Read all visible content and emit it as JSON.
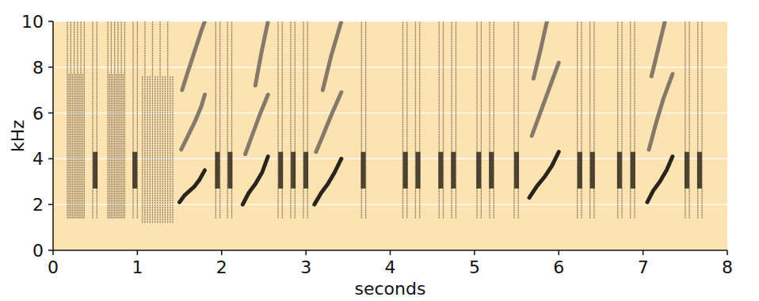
{
  "chart_data": {
    "type": "spectrogram",
    "x_label": "seconds",
    "y_label": "kHz",
    "xlim": [
      0,
      8
    ],
    "ylim": [
      0,
      10
    ],
    "xticks": [
      0,
      1,
      2,
      3,
      4,
      5,
      6,
      7,
      8
    ],
    "yticks": [
      0,
      2,
      4,
      6,
      8,
      10
    ],
    "grid": true,
    "color": "#3a3124",
    "clicks": {
      "x": [
        0.17,
        0.19,
        0.21,
        0.23,
        0.25,
        0.27,
        0.29,
        0.31,
        0.33,
        0.35,
        0.37,
        0.47,
        0.52,
        0.65,
        0.67,
        0.69,
        0.71,
        0.73,
        0.75,
        0.77,
        0.79,
        0.81,
        0.83,
        0.85,
        0.95,
        1.0,
        1.06,
        1.09,
        1.12,
        1.15,
        1.18,
        1.21,
        1.24,
        1.27,
        1.3,
        1.33,
        1.36,
        1.39,
        1.42,
        1.93,
        1.98,
        2.07,
        2.12,
        2.67,
        2.72,
        2.82,
        2.87,
        2.97,
        3.02,
        3.66,
        3.71,
        4.15,
        4.2,
        4.3,
        4.35,
        4.58,
        4.63,
        4.73,
        4.78,
        5.03,
        5.08,
        5.18,
        5.23,
        5.47,
        5.52,
        6.22,
        6.27,
        6.37,
        6.42,
        6.7,
        6.75,
        6.85,
        6.9,
        7.5,
        7.55,
        7.65,
        7.7
      ],
      "low": [
        1.4,
        1.4,
        1.4,
        1.4,
        1.4,
        1.4,
        1.4,
        1.4,
        1.4,
        1.4,
        1.4,
        1.4,
        1.4,
        1.4,
        1.4,
        1.4,
        1.4,
        1.4,
        1.4,
        1.4,
        1.4,
        1.4,
        1.4,
        1.4,
        1.4,
        1.4,
        1.2,
        1.2,
        1.2,
        1.2,
        1.2,
        1.2,
        1.2,
        1.2,
        1.2,
        1.2,
        1.2,
        1.2,
        1.2,
        1.4,
        1.4,
        1.4,
        1.4,
        1.4,
        1.4,
        1.4,
        1.4,
        1.4,
        1.4,
        1.4,
        1.4,
        1.4,
        1.4,
        1.4,
        1.4,
        1.4,
        1.4,
        1.4,
        1.4,
        1.4,
        1.4,
        1.4,
        1.4,
        1.4,
        1.4,
        1.4,
        1.4,
        1.4,
        1.4,
        1.4,
        1.4,
        1.4,
        1.4,
        1.4,
        1.4,
        1.4,
        1.4
      ],
      "high": [
        10,
        7.7,
        10,
        7.7,
        10,
        7.7,
        10,
        7.7,
        10,
        7.7,
        10,
        10,
        10,
        10,
        7.7,
        10,
        7.7,
        10,
        7.7,
        10,
        7.7,
        10,
        7.7,
        10,
        10,
        10,
        7.6,
        10,
        7.6,
        7.6,
        10,
        7.6,
        7.6,
        10,
        7.6,
        7.6,
        10,
        7.6,
        7.6,
        10,
        10,
        10,
        10,
        10,
        10,
        10,
        10,
        10,
        10,
        10,
        10,
        10,
        10,
        10,
        10,
        10,
        10,
        10,
        10,
        10,
        10,
        10,
        10,
        10,
        10,
        10,
        10,
        10,
        10,
        10,
        10,
        10,
        10,
        10,
        10,
        10,
        10
      ]
    },
    "pulses": {
      "x": [
        0.5,
        0.97,
        1.95,
        2.1,
        2.7,
        2.85,
        3.0,
        3.68,
        4.18,
        4.33,
        4.6,
        4.75,
        5.05,
        5.2,
        5.5,
        6.25,
        6.4,
        6.72,
        6.88,
        7.52,
        7.67
      ],
      "low": [
        2.7,
        2.7,
        2.7,
        2.7,
        2.7,
        2.7,
        2.7,
        2.7,
        2.7,
        2.7,
        2.7,
        2.7,
        2.7,
        2.7,
        2.7,
        2.7,
        2.7,
        2.7,
        2.7,
        2.7,
        2.7
      ],
      "high": [
        4.3,
        4.3,
        4.3,
        4.3,
        4.3,
        4.3,
        4.3,
        4.3,
        4.3,
        4.3,
        4.3,
        4.3,
        4.3,
        4.3,
        4.3,
        4.3,
        4.3,
        4.3,
        4.3,
        4.3,
        4.3
      ]
    },
    "notes": [
      {
        "color": "#2b241a",
        "x": [
          1.5,
          1.56,
          1.62,
          1.68,
          1.74,
          1.8
        ],
        "y": [
          2.1,
          2.4,
          2.6,
          2.8,
          3.1,
          3.5
        ]
      },
      {
        "color": "#85796a",
        "x": [
          1.52,
          1.6,
          1.68,
          1.76,
          1.8
        ],
        "y": [
          4.4,
          5.0,
          5.6,
          6.3,
          6.8
        ]
      },
      {
        "color": "#85796a",
        "x": [
          1.53,
          1.6,
          1.68,
          1.76,
          1.8
        ],
        "y": [
          7.0,
          7.8,
          8.7,
          9.6,
          10
        ]
      },
      {
        "color": "#2b241a",
        "x": [
          2.25,
          2.32,
          2.4,
          2.48,
          2.55
        ],
        "y": [
          2.0,
          2.5,
          2.9,
          3.4,
          4.1
        ]
      },
      {
        "color": "#85796a",
        "x": [
          2.28,
          2.36,
          2.45,
          2.55
        ],
        "y": [
          4.2,
          5.0,
          5.9,
          6.8
        ]
      },
      {
        "color": "#85796a",
        "x": [
          2.4,
          2.47,
          2.55
        ],
        "y": [
          7.2,
          8.6,
          10
        ]
      },
      {
        "color": "#2b241a",
        "x": [
          3.1,
          3.18,
          3.26,
          3.34,
          3.42
        ],
        "y": [
          2.0,
          2.5,
          2.9,
          3.4,
          4.0
        ]
      },
      {
        "color": "#85796a",
        "x": [
          3.12,
          3.2,
          3.3,
          3.42
        ],
        "y": [
          4.3,
          5.0,
          5.9,
          6.9
        ]
      },
      {
        "color": "#85796a",
        "x": [
          3.2,
          3.3,
          3.42
        ],
        "y": [
          7.0,
          8.5,
          10
        ]
      },
      {
        "color": "#2b241a",
        "x": [
          5.65,
          5.74,
          5.83,
          5.92,
          6.0
        ],
        "y": [
          2.3,
          2.8,
          3.2,
          3.7,
          4.3
        ]
      },
      {
        "color": "#85796a",
        "x": [
          5.68,
          5.78,
          5.88,
          6.0
        ],
        "y": [
          5.0,
          6.0,
          7.0,
          8.2
        ]
      },
      {
        "color": "#85796a",
        "x": [
          5.7,
          5.78,
          5.86
        ],
        "y": [
          7.5,
          8.7,
          10
        ]
      },
      {
        "color": "#2b241a",
        "x": [
          7.05,
          7.12,
          7.2,
          7.28,
          7.35
        ],
        "y": [
          2.1,
          2.6,
          3.0,
          3.5,
          4.1
        ]
      },
      {
        "color": "#85796a",
        "x": [
          7.07,
          7.15,
          7.24,
          7.35
        ],
        "y": [
          4.4,
          5.5,
          6.6,
          7.7
        ]
      },
      {
        "color": "#85796a",
        "x": [
          7.1,
          7.18,
          7.26
        ],
        "y": [
          7.6,
          8.8,
          10
        ]
      }
    ]
  }
}
